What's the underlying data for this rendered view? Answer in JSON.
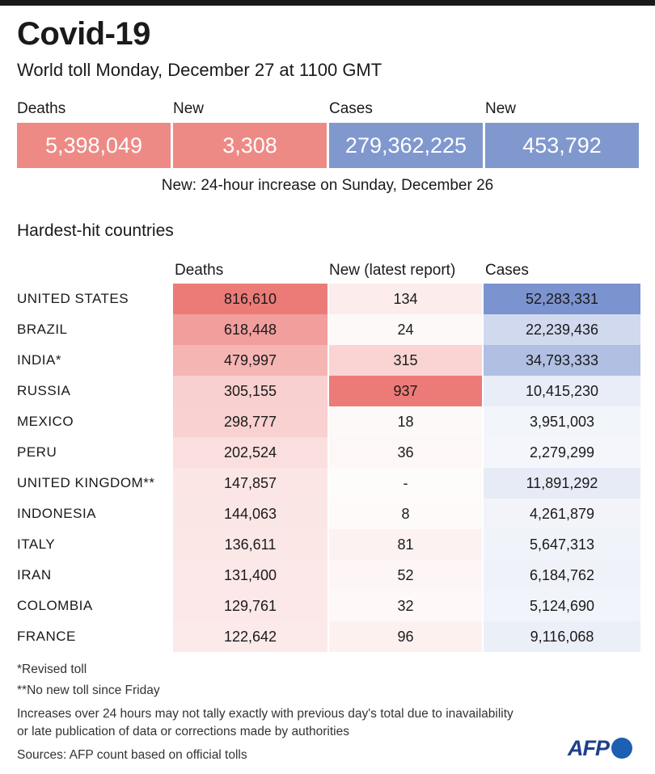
{
  "header": {
    "title": "Covid-19",
    "subtitle": "World toll Monday, December 27 at 1100 GMT"
  },
  "summary": {
    "items": [
      {
        "label": "Deaths",
        "value": "5,398,049",
        "color": "#ee8a85"
      },
      {
        "label": "New",
        "value": "3,308",
        "color": "#ee8a85"
      },
      {
        "label": "Cases",
        "value": "279,362,225",
        "color": "#8098ce"
      },
      {
        "label": "New",
        "value": "453,792",
        "color": "#8098ce"
      }
    ],
    "note": "New: 24-hour increase on Sunday, December 26"
  },
  "section_title": "Hardest-hit countries",
  "colors": {
    "deaths_scale": "#ec7b78",
    "cases_scale": "#7b93cf",
    "base": "#ffffff"
  },
  "chart_data": {
    "type": "table",
    "title": "Hardest-hit countries",
    "columns": [
      "Deaths",
      "New (latest report)",
      "Cases"
    ],
    "rows": [
      {
        "country": "UNITED STATES",
        "deaths": "816,610",
        "new": "134",
        "cases": "52,283,331"
      },
      {
        "country": "BRAZIL",
        "deaths": "618,448",
        "new": "24",
        "cases": "22,239,436"
      },
      {
        "country": "INDIA*",
        "deaths": "479,997",
        "new": "315",
        "cases": "34,793,333"
      },
      {
        "country": "RUSSIA",
        "deaths": "305,155",
        "new": "937",
        "cases": "10,415,230"
      },
      {
        "country": "MEXICO",
        "deaths": "298,777",
        "new": "18",
        "cases": "3,951,003"
      },
      {
        "country": "PERU",
        "deaths": "202,524",
        "new": "36",
        "cases": "2,279,299"
      },
      {
        "country": "UNITED KINGDOM**",
        "deaths": "147,857",
        "new": "-",
        "cases": "11,891,292"
      },
      {
        "country": "INDONESIA",
        "deaths": "144,063",
        "new": "8",
        "cases": "4,261,879"
      },
      {
        "country": "ITALY",
        "deaths": "136,611",
        "new": "81",
        "cases": "5,647,313"
      },
      {
        "country": "IRAN",
        "deaths": "131,400",
        "new": "52",
        "cases": "6,184,762"
      },
      {
        "country": "COLOMBIA",
        "deaths": "129,761",
        "new": "32",
        "cases": "5,124,690"
      },
      {
        "country": "FRANCE",
        "deaths": "122,642",
        "new": "96",
        "cases": "9,116,068"
      }
    ]
  },
  "footnotes": {
    "revised": "*Revised toll",
    "no_new": "**No new toll since Friday",
    "increases_line1": "Increases over 24 hours may not tally exactly with previous day's total due to inavailability",
    "increases_line2": "or late publication of data or corrections made by authorities",
    "sources": "Sources: AFP count based on official tolls"
  },
  "logo": {
    "text": "AFP"
  }
}
